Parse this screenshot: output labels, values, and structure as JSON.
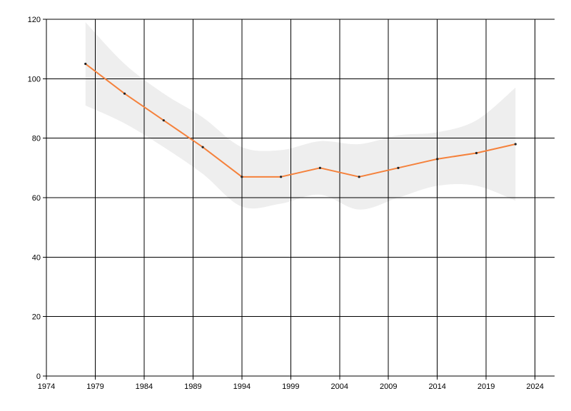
{
  "chart_data": {
    "type": "line",
    "title": "",
    "xlabel": "",
    "ylabel": "",
    "xlim": [
      1974,
      2026
    ],
    "ylim": [
      0,
      120
    ],
    "x_ticks": [
      1974,
      1979,
      1984,
      1989,
      1994,
      1999,
      2004,
      2009,
      2014,
      2019,
      2024
    ],
    "y_ticks": [
      0,
      20,
      40,
      60,
      80,
      100,
      120
    ],
    "grid": true,
    "legend": "none",
    "series": [
      {
        "x": [
          1978,
          1982,
          1986,
          1990,
          1994,
          1998,
          2002,
          2006,
          2010,
          2014,
          2018,
          2022
        ],
        "y": [
          105,
          95,
          86,
          77,
          67,
          67,
          70,
          67,
          70,
          73,
          75,
          78
        ],
        "color": "#f5813b"
      }
    ],
    "band": {
      "x": [
        1978,
        1982,
        1986,
        1990,
        1994,
        1998,
        2002,
        2006,
        2010,
        2014,
        2018,
        2022
      ],
      "upper": [
        119,
        105,
        95,
        87,
        77,
        76,
        79,
        78,
        81,
        82,
        86,
        97
      ],
      "lower": [
        91,
        85,
        77,
        68,
        57,
        58,
        61,
        56,
        60,
        64,
        64,
        59
      ],
      "color": "#eeeeee"
    }
  }
}
